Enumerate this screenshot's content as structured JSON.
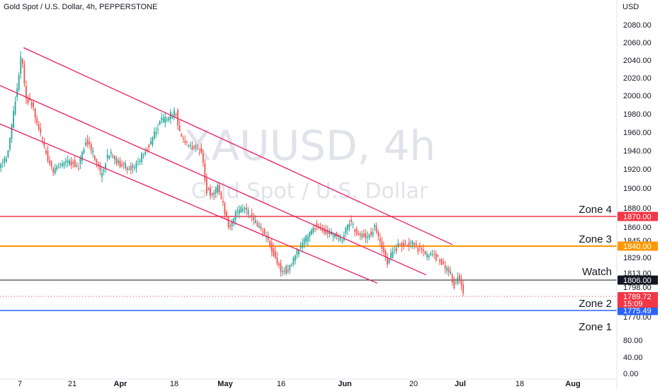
{
  "header": {
    "title": "Gold Spot / U.S. Dollar, 4h, PEPPERSTONE"
  },
  "watermark": {
    "symbol": "XAUUSD, 4h",
    "description": "Gold Spot / U.S. Dollar"
  },
  "price_axis": {
    "currency": "USD"
  },
  "colors": {
    "bullish": "#26a69a",
    "bearish": "#ef5350",
    "channel": "#e91e63",
    "zone4": "#f23645",
    "zone3": "#ff9800",
    "watch": "#131722",
    "zone2": "#2962ff",
    "last_price": "#f23645"
  },
  "chart_data": {
    "type": "candlestick",
    "symbol": "XAUUSD",
    "timeframe": "4h",
    "x_tick_labels": [
      "7",
      "21",
      "Apr",
      "18",
      "May",
      "16",
      "Jun",
      "20",
      "Jul",
      "18",
      "Aug"
    ],
    "y_tick_labels": [
      "2080.00",
      "2060.00",
      "2040.00",
      "2020.00",
      "2000.00",
      "1980.00",
      "1960.00",
      "1940.00",
      "1920.00",
      "1900.00",
      "1880.00",
      "1860.00",
      "1845.00",
      "1829.00",
      "1813.00",
      "1798.00",
      "1770.00",
      "80.00",
      "40.00",
      "0.00"
    ],
    "path_points": [
      {
        "x": "Mar 1",
        "y": 1918
      },
      {
        "x": "Mar 4",
        "y": 1935
      },
      {
        "x": "Mar 6",
        "y": 1990
      },
      {
        "x": "Mar 8",
        "y": 2050
      },
      {
        "x": "Mar 9",
        "y": 2000
      },
      {
        "x": "Mar 11",
        "y": 1990
      },
      {
        "x": "Mar 14",
        "y": 1945
      },
      {
        "x": "Mar 16",
        "y": 1920
      },
      {
        "x": "Mar 18",
        "y": 1928
      },
      {
        "x": "Mar 21",
        "y": 1930
      },
      {
        "x": "Mar 23",
        "y": 1925
      },
      {
        "x": "Mar 25",
        "y": 1955
      },
      {
        "x": "Mar 28",
        "y": 1930
      },
      {
        "x": "Mar 29",
        "y": 1915
      },
      {
        "x": "Mar 31",
        "y": 1940
      },
      {
        "x": "Apr 4",
        "y": 1925
      },
      {
        "x": "Apr 7",
        "y": 1925
      },
      {
        "x": "Apr 11",
        "y": 1950
      },
      {
        "x": "Apr 14",
        "y": 1975
      },
      {
        "x": "Apr 18",
        "y": 1985
      },
      {
        "x": "Apr 19",
        "y": 1960
      },
      {
        "x": "Apr 21",
        "y": 1950
      },
      {
        "x": "Apr 25",
        "y": 1940
      },
      {
        "x": "Apr 26",
        "y": 1900
      },
      {
        "x": "Apr 28",
        "y": 1895
      },
      {
        "x": "Apr 29",
        "y": 1905
      },
      {
        "x": "May 2",
        "y": 1860
      },
      {
        "x": "May 4",
        "y": 1875
      },
      {
        "x": "May 6",
        "y": 1880
      },
      {
        "x": "May 9",
        "y": 1865
      },
      {
        "x": "May 12",
        "y": 1850
      },
      {
        "x": "May 14",
        "y": 1830
      },
      {
        "x": "May 16",
        "y": 1810
      },
      {
        "x": "May 18",
        "y": 1815
      },
      {
        "x": "May 20",
        "y": 1830
      },
      {
        "x": "May 23",
        "y": 1850
      },
      {
        "x": "May 25",
        "y": 1860
      },
      {
        "x": "May 27",
        "y": 1855
      },
      {
        "x": "May 30",
        "y": 1850
      },
      {
        "x": "Jun 1",
        "y": 1845
      },
      {
        "x": "Jun 3",
        "y": 1865
      },
      {
        "x": "Jun 6",
        "y": 1850
      },
      {
        "x": "Jun 8",
        "y": 1850
      },
      {
        "x": "Jun 10",
        "y": 1860
      },
      {
        "x": "Jun 13",
        "y": 1820
      },
      {
        "x": "Jun 15",
        "y": 1835
      },
      {
        "x": "Jun 17",
        "y": 1840
      },
      {
        "x": "Jun 20",
        "y": 1840
      },
      {
        "x": "Jun 23",
        "y": 1830
      },
      {
        "x": "Jun 27",
        "y": 1825
      },
      {
        "x": "Jun 28",
        "y": 1818
      },
      {
        "x": "Jun 30",
        "y": 1808
      },
      {
        "x": "Jul 1",
        "y": 1792
      },
      {
        "x": "Jul 2",
        "y": 1805
      },
      {
        "x": "Jul 3",
        "y": 1790
      }
    ],
    "horizontal_levels": [
      {
        "label": "Zone 4",
        "price_tag": "1870.00",
        "value": 1870.0
      },
      {
        "label": "Zone 3",
        "price_tag": "1840.00",
        "value": 1840.0
      },
      {
        "label": "Watch",
        "price_tag": "1806.00",
        "value": 1806.0
      },
      {
        "label": "Zone 2",
        "price_tag": "1775.49",
        "value": 1775.49
      },
      {
        "label": "Zone 1",
        "price_tag": "",
        "value": null
      }
    ],
    "last_price": {
      "value": "1789.72",
      "countdown": "15:09"
    },
    "descending_channel": [
      {
        "start": {
          "x": "Mar 8",
          "y": 2055
        },
        "end": {
          "x": "Jun 30",
          "y": 1840
        }
      },
      {
        "start": {
          "x": "Mar 1",
          "y": 2015
        },
        "end": {
          "x": "Jun 23",
          "y": 1807
        }
      },
      {
        "start": {
          "x": "Mar 1",
          "y": 1973
        },
        "end": {
          "x": "Jun 10",
          "y": 1798
        }
      }
    ],
    "grid": false
  }
}
